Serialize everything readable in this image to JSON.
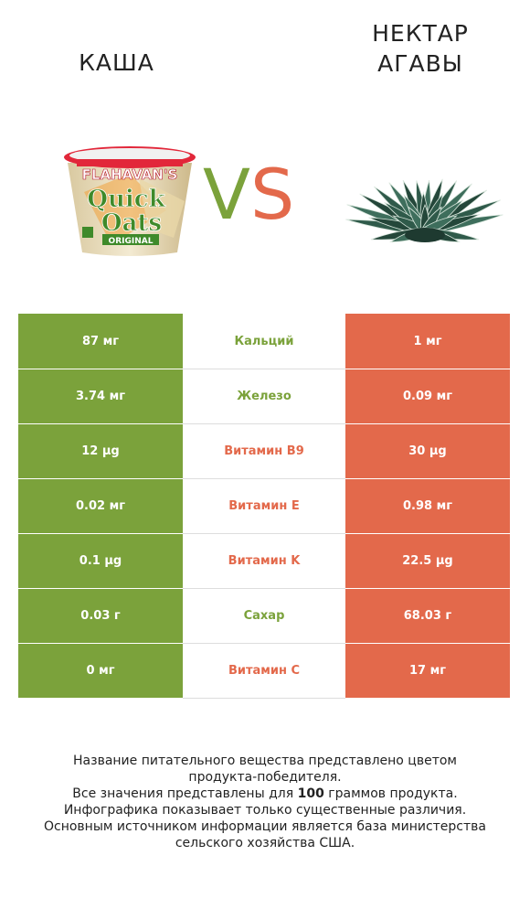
{
  "left_product": {
    "name": "КАША",
    "color": "#7ba23b",
    "image": "oats-cup-image"
  },
  "right_product": {
    "name_line1": "НЕКТАР",
    "name_line2": "АГАВЫ",
    "color": "#e3694b",
    "image": "agave-plant-image"
  },
  "vs": {
    "v": "V",
    "s": "S"
  },
  "rows": [
    {
      "left": "87 мг",
      "nutrient": "Кальций",
      "right": "1 мг",
      "winner": "left"
    },
    {
      "left": "3.74 мг",
      "nutrient": "Железо",
      "right": "0.09 мг",
      "winner": "left"
    },
    {
      "left": "12 µg",
      "nutrient": "Витамин B9",
      "right": "30 µg",
      "winner": "right"
    },
    {
      "left": "0.02 мг",
      "nutrient": "Витамин E",
      "right": "0.98 мг",
      "winner": "right"
    },
    {
      "left": "0.1 µg",
      "nutrient": "Витамин K",
      "right": "22.5 µg",
      "winner": "right"
    },
    {
      "left": "0.03 г",
      "nutrient": "Сахар",
      "right": "68.03 г",
      "winner": "left"
    },
    {
      "left": "0 мг",
      "nutrient": "Витамин C",
      "right": "17 мг",
      "winner": "right"
    }
  ],
  "footer": {
    "line1": "Название питательного вещества представлено цветом",
    "line2": "продукта-победителя.",
    "line3_pre": "Все значения представлены для ",
    "line3_num": "100",
    "line3_post": " граммов продукта.",
    "line4": "Инфографика показывает только существенные различия.",
    "line5": "Основным источником информации является база министерства",
    "line6": "сельского хозяйства США."
  },
  "packaging": {
    "brand": "FLAHAVAN'S",
    "product_line1": "Quick",
    "product_line2": "Oats",
    "variant": "ORIGINAL"
  }
}
